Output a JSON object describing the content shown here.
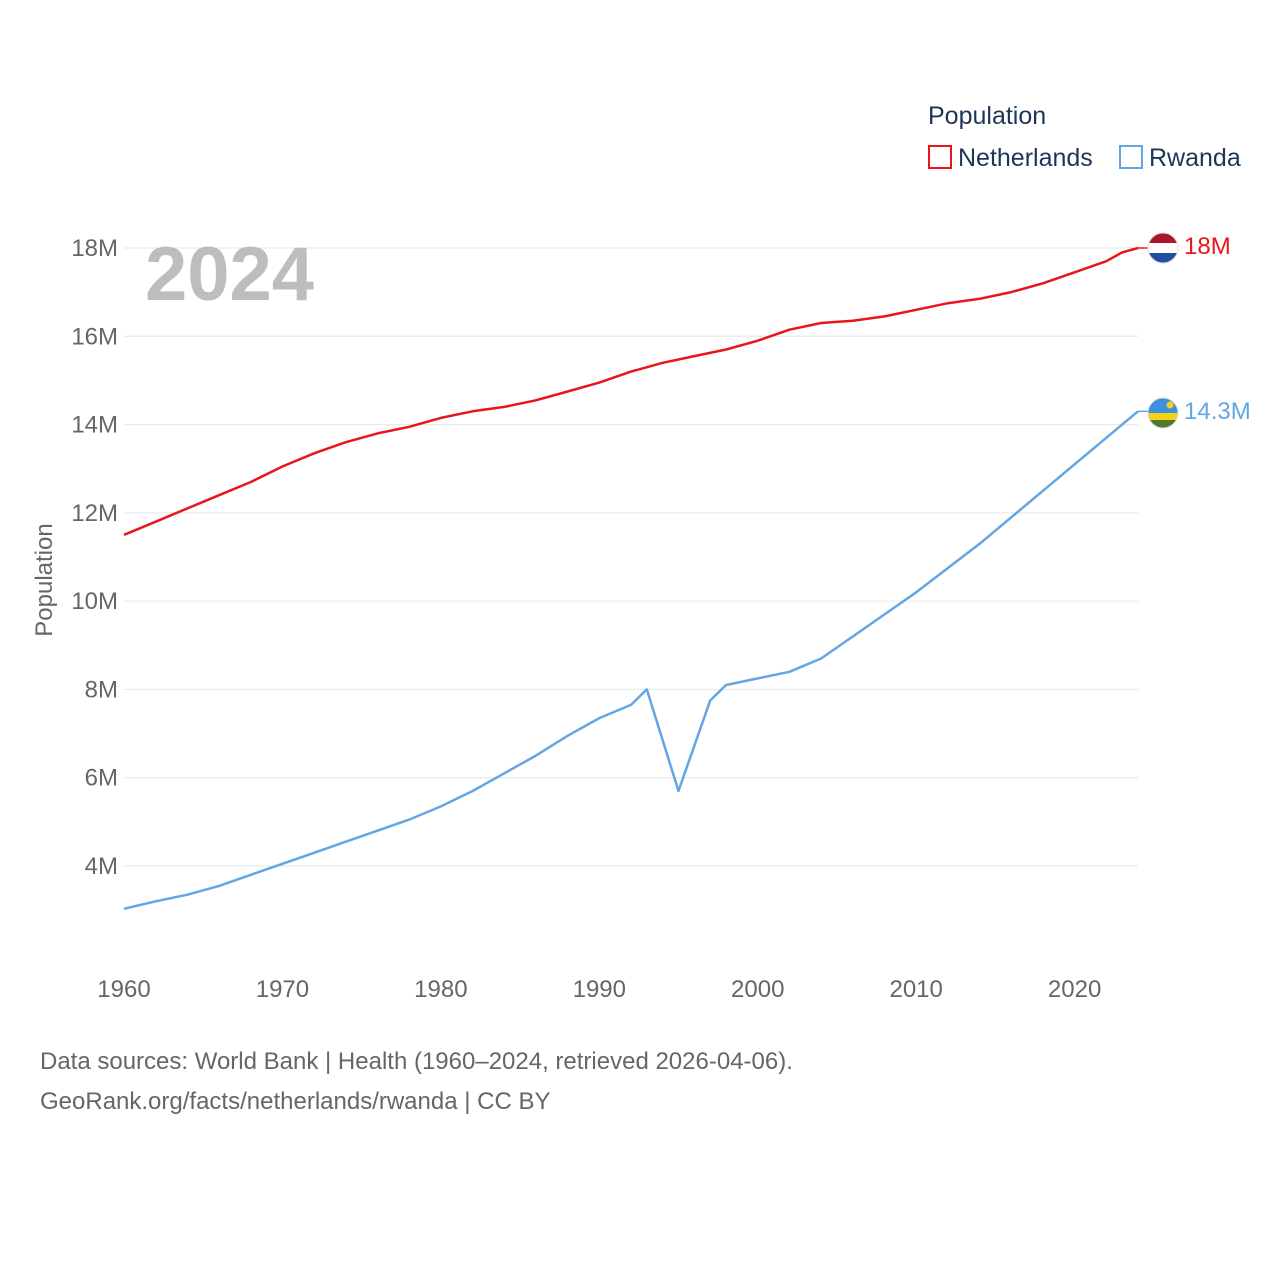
{
  "chart_data": {
    "type": "line",
    "year_label": "2024",
    "ylabel": "Population",
    "ylim": [
      2300000,
      19000000
    ],
    "xlim": [
      1960,
      2024
    ],
    "y_ticks": [
      {
        "value": 4000000,
        "label": "4M"
      },
      {
        "value": 6000000,
        "label": "6M"
      },
      {
        "value": 8000000,
        "label": "8M"
      },
      {
        "value": 10000000,
        "label": "10M"
      },
      {
        "value": 12000000,
        "label": "12M"
      },
      {
        "value": 14000000,
        "label": "14M"
      },
      {
        "value": 16000000,
        "label": "16M"
      },
      {
        "value": 18000000,
        "label": "18M"
      }
    ],
    "x_ticks": [
      {
        "value": 1960,
        "label": "1960"
      },
      {
        "value": 1970,
        "label": "1970"
      },
      {
        "value": 1980,
        "label": "1980"
      },
      {
        "value": 1990,
        "label": "1990"
      },
      {
        "value": 2000,
        "label": "2000"
      },
      {
        "value": 2010,
        "label": "2010"
      },
      {
        "value": 2020,
        "label": "2020"
      }
    ],
    "legend": {
      "title": "Population",
      "placement": "top-right",
      "items": [
        "Netherlands",
        "Rwanda"
      ]
    },
    "series": [
      {
        "name": "Netherlands",
        "color": "#e8151a",
        "end_label": "18M",
        "flag_icon": "netherlands-flag-icon",
        "x": [
          1960,
          1962,
          1964,
          1966,
          1968,
          1970,
          1972,
          1974,
          1976,
          1978,
          1980,
          1982,
          1984,
          1986,
          1988,
          1990,
          1992,
          1994,
          1996,
          1998,
          2000,
          2002,
          2004,
          2006,
          2008,
          2010,
          2012,
          2014,
          2016,
          2018,
          2020,
          2022,
          2023,
          2024
        ],
        "values": [
          11500000,
          11800000,
          12100000,
          12400000,
          12700000,
          13050000,
          13350000,
          13600000,
          13800000,
          13950000,
          14150000,
          14300000,
          14400000,
          14550000,
          14750000,
          14950000,
          15200000,
          15400000,
          15550000,
          15700000,
          15900000,
          16150000,
          16300000,
          16350000,
          16450000,
          16600000,
          16750000,
          16850000,
          17000000,
          17200000,
          17450000,
          17700000,
          17900000,
          18000000
        ]
      },
      {
        "name": "Rwanda",
        "color": "#63a6e2",
        "end_label": "14.3M",
        "flag_icon": "rwanda-flag-icon",
        "x": [
          1960,
          1962,
          1964,
          1966,
          1968,
          1970,
          1972,
          1974,
          1976,
          1978,
          1980,
          1982,
          1984,
          1986,
          1988,
          1990,
          1992,
          1993,
          1995,
          1997,
          1998,
          2000,
          2002,
          2004,
          2006,
          2008,
          2010,
          2012,
          2014,
          2016,
          2018,
          2020,
          2022,
          2024
        ],
        "values": [
          3030000,
          3200000,
          3350000,
          3550000,
          3800000,
          4050000,
          4300000,
          4550000,
          4800000,
          5050000,
          5350000,
          5700000,
          6100000,
          6500000,
          6950000,
          7350000,
          7650000,
          8000000,
          5700000,
          7750000,
          8100000,
          8250000,
          8400000,
          8700000,
          9200000,
          9700000,
          10200000,
          10750000,
          11300000,
          11900000,
          12500000,
          13100000,
          13700000,
          14300000
        ]
      }
    ]
  },
  "source": {
    "line1": "Data sources: World Bank | Health (1960–2024, retrieved 2026-04-06).",
    "line2": "GeoRank.org/facts/netherlands/rwanda | CC BY"
  }
}
